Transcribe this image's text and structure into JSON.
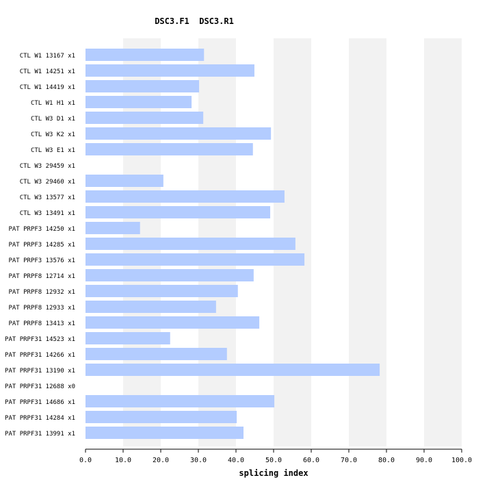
{
  "chart_data": {
    "type": "bar",
    "orientation": "horizontal",
    "title": "DSC3.F1  DSC3.R1",
    "xlabel": "splicing index",
    "xlim": [
      0,
      100
    ],
    "xticks": [
      "0.0",
      "10.0",
      "20.0",
      "30.0",
      "40.0",
      "50.0",
      "60.0",
      "70.0",
      "80.0",
      "90.0",
      "100.0"
    ],
    "grid": "alternating vertical bands",
    "bar_color": "#b3ccff",
    "band_color": "#f2f2f2",
    "categories": [
      "CTL W1 13167 x1",
      "CTL W1 14251 x1",
      "CTL W1 14419 x1",
      "CTL W1 H1 x1",
      "CTL W3 D1 x1",
      "CTL W3 K2 x1",
      "CTL W3 E1 x1",
      "CTL W3 29459 x1",
      "CTL W3 29460 x1",
      "CTL W3 13577 x1",
      "CTL W3 13491 x1",
      "PAT PRPF3 14250 x1",
      "PAT PRPF3 14285 x1",
      "PAT PRPF3 13576 x1",
      "PAT PRPF8 12714 x1",
      "PAT PRPF8 12932 x1",
      "PAT PRPF8 12933 x1",
      "PAT PRPF8 13413 x1",
      "PAT PRPF31 14523 x1",
      "PAT PRPF31 14266 x1",
      "PAT PRPF31 13190 x1",
      "PAT PRPF31 12688 x0",
      "PAT PRPF31 14686 x1",
      "PAT PRPF31 14284 x1",
      "PAT PRPF31 13991 x1"
    ],
    "values": [
      31.5,
      44.9,
      30.2,
      28.2,
      31.3,
      49.3,
      44.5,
      null,
      20.7,
      52.9,
      49.1,
      14.5,
      55.8,
      58.2,
      44.7,
      40.5,
      34.7,
      46.2,
      22.5,
      37.6,
      78.2,
      null,
      50.2,
      40.2,
      42.0
    ]
  }
}
